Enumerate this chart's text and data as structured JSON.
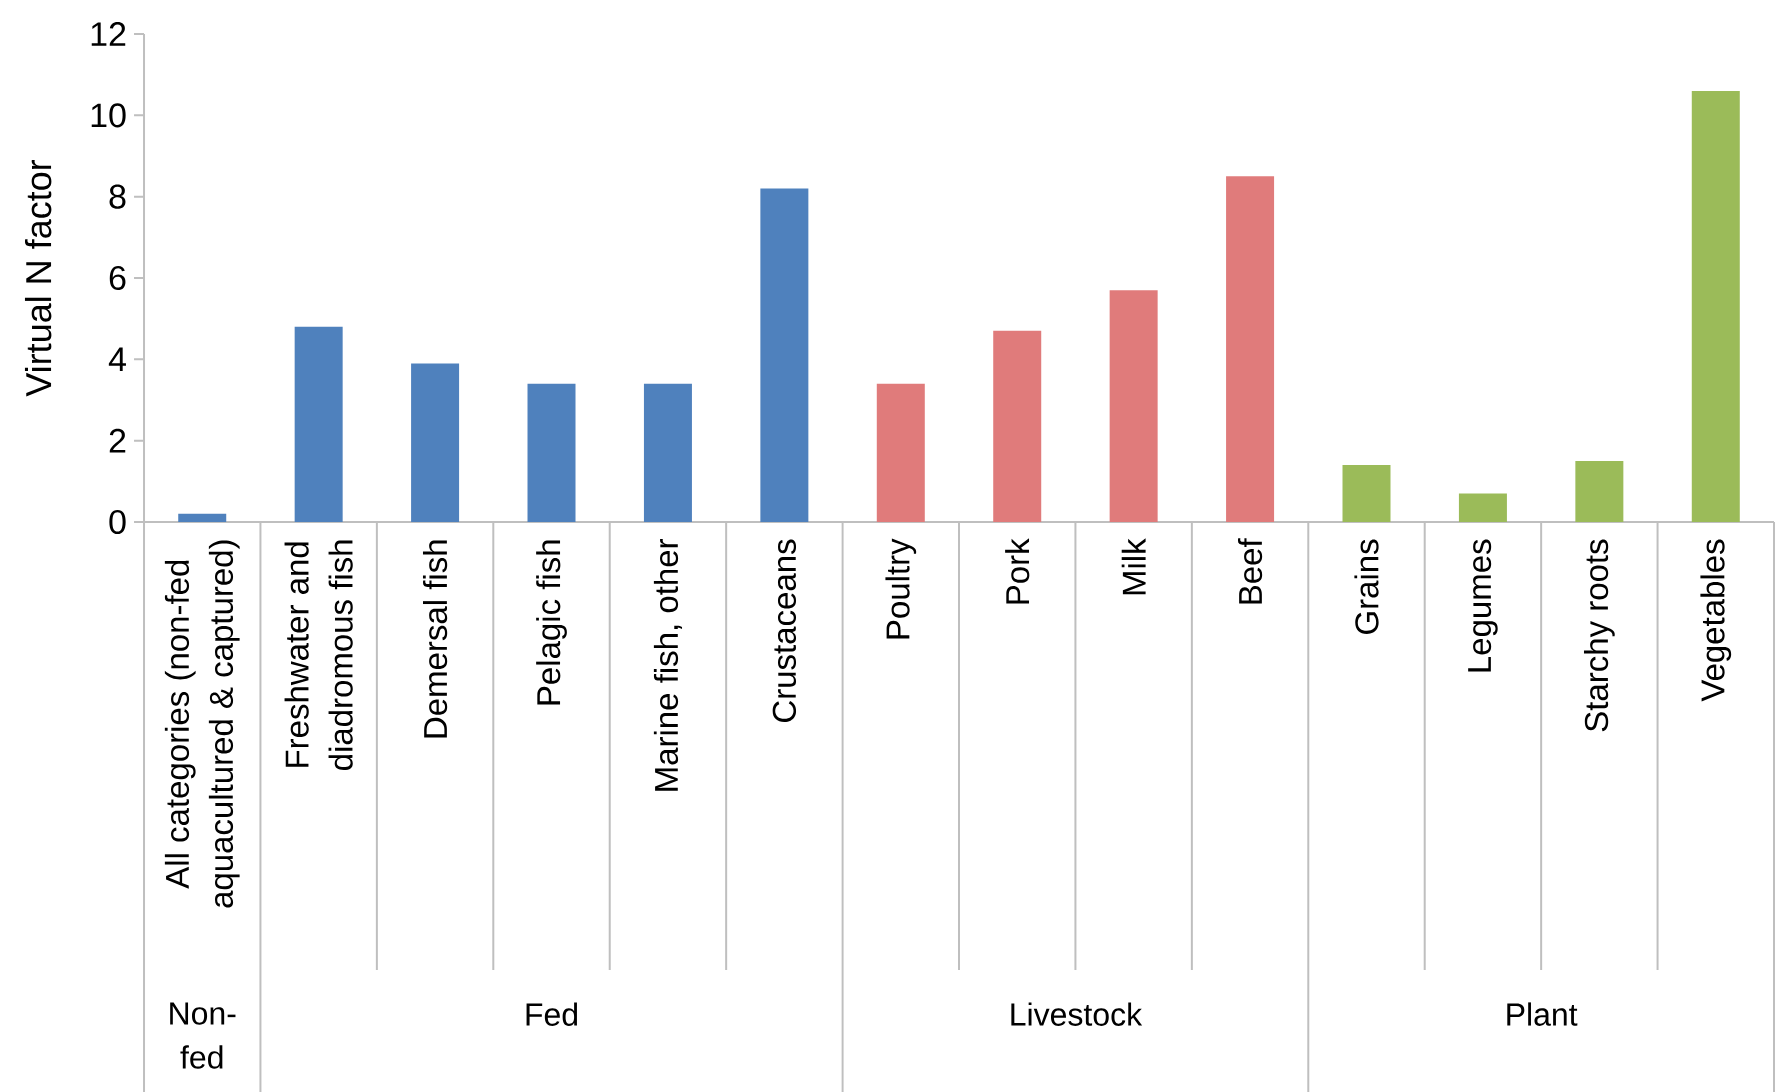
{
  "chart_data": {
    "type": "bar",
    "ylabel": "Virtual N factor",
    "categories": [
      "All categories (non-fed aquacultured & captured)",
      "Freshwater and diadromous fish",
      "Demersal fish",
      "Pelagic fish",
      "Marine fish, other",
      "Crustaceans",
      "Poultry",
      "Pork",
      "Milk",
      "Beef",
      "Grains",
      "Legumes",
      "Starchy roots",
      "Vegetables"
    ],
    "series": [
      {
        "color": "#4f81bd",
        "values": [
          0.2,
          null,
          null,
          null,
          null,
          null,
          null,
          null,
          null,
          null,
          null,
          null,
          null,
          null
        ]
      },
      {
        "color": "#4f81bd",
        "values": [
          null,
          4.8,
          3.9,
          3.4,
          3.4,
          8.2,
          null,
          null,
          null,
          null,
          null,
          null,
          null,
          null
        ]
      },
      {
        "color": "#e07b7b",
        "values": [
          null,
          null,
          null,
          null,
          null,
          null,
          3.4,
          4.7,
          5.7,
          8.5,
          null,
          null,
          null,
          null
        ]
      },
      {
        "color": "#9bbb59",
        "values": [
          null,
          null,
          null,
          null,
          null,
          null,
          null,
          null,
          null,
          null,
          1.4,
          0.7,
          1.5,
          10.6
        ]
      }
    ],
    "annotations": [
      "Non-fed",
      "Fed",
      "Livestock",
      "Plant"
    ],
    "ylim": [
      0,
      12
    ],
    "yticks": [
      0,
      2,
      4,
      6,
      8,
      10,
      12
    ]
  }
}
